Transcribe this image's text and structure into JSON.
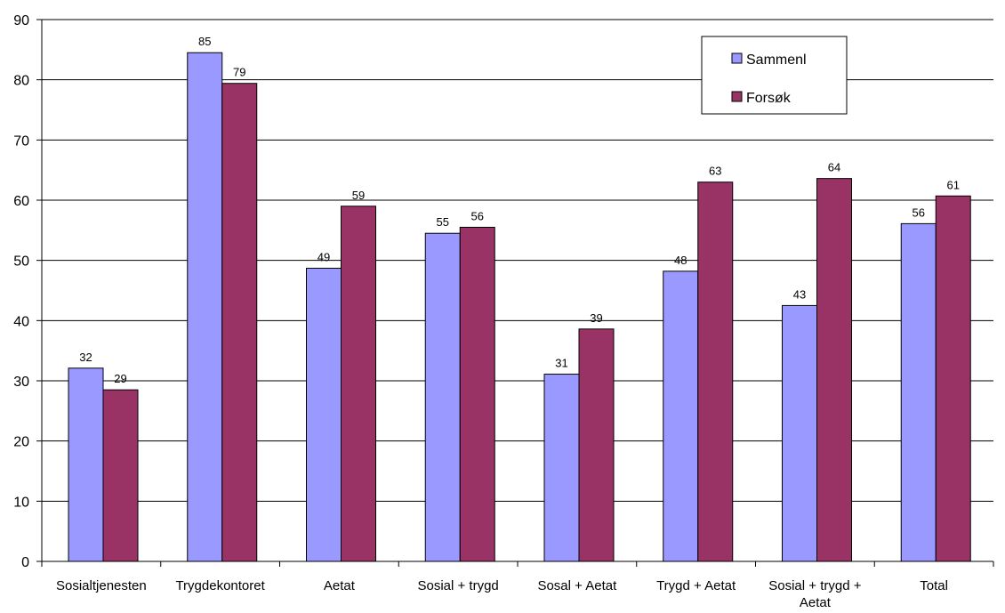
{
  "chart_data": {
    "type": "bar",
    "title": "",
    "xlabel": "",
    "ylabel": "",
    "ylim": [
      0,
      90
    ],
    "ytick_step": 10,
    "grid": true,
    "legend_position": "top-right",
    "categories": [
      [
        "Sosialtjenesten"
      ],
      [
        "Trygdekontoret"
      ],
      [
        "Aetat"
      ],
      [
        "Sosial + trygd"
      ],
      [
        "Sosal + Aetat"
      ],
      [
        "Trygd + Aetat"
      ],
      [
        "Sosial + trygd +",
        "Aetat"
      ],
      [
        "Total"
      ]
    ],
    "series": [
      {
        "name": "Sammenl",
        "color": "#9999ff",
        "values": [
          32.1,
          84.5,
          48.7,
          54.5,
          31.1,
          48.2,
          42.5,
          56.1
        ],
        "labels": [
          "32",
          "85",
          "49",
          "55",
          "31",
          "48",
          "43",
          "56"
        ]
      },
      {
        "name": "Forsøk",
        "color": "#993366",
        "values": [
          28.5,
          79.4,
          59.0,
          55.5,
          38.6,
          63.0,
          63.6,
          60.7
        ],
        "labels": [
          "29",
          "79",
          "59",
          "56",
          "39",
          "63",
          "64",
          "61"
        ]
      }
    ]
  }
}
